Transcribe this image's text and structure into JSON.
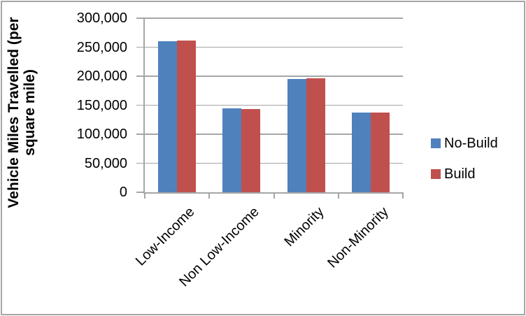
{
  "chart_data": {
    "type": "bar",
    "title": "",
    "categories": [
      "Low-Income",
      "Non Low-Income",
      "Minority",
      "Non-Minority"
    ],
    "series": [
      {
        "name": "No-Build",
        "color": "#4F81BD",
        "values": [
          260000,
          144000,
          195000,
          137500
        ]
      },
      {
        "name": "Build",
        "color": "#C0504D",
        "values": [
          261500,
          143500,
          196500,
          137500
        ]
      }
    ],
    "xlabel": "",
    "ylabel": "Vehicle Miles Travelled (per square mile)",
    "ylabel_lines": [
      "Vehicle Miles Travelled (per",
      "square mile)"
    ],
    "ylim": [
      0,
      300000
    ],
    "ytick_step": 50000,
    "ytick_labels": [
      "300,000",
      "250,000",
      "200,000",
      "150,000",
      "100,000",
      "50,000",
      "0"
    ],
    "grid": true,
    "legend_position": "right",
    "legend": [
      "No-Build",
      "Build"
    ]
  },
  "colors": {
    "no_build": "#4F81BD",
    "build": "#C0504D",
    "gridline": "#A6A6A6",
    "axis": "#A6A6A6",
    "border": "#A6A6A6",
    "text": "#000000"
  }
}
